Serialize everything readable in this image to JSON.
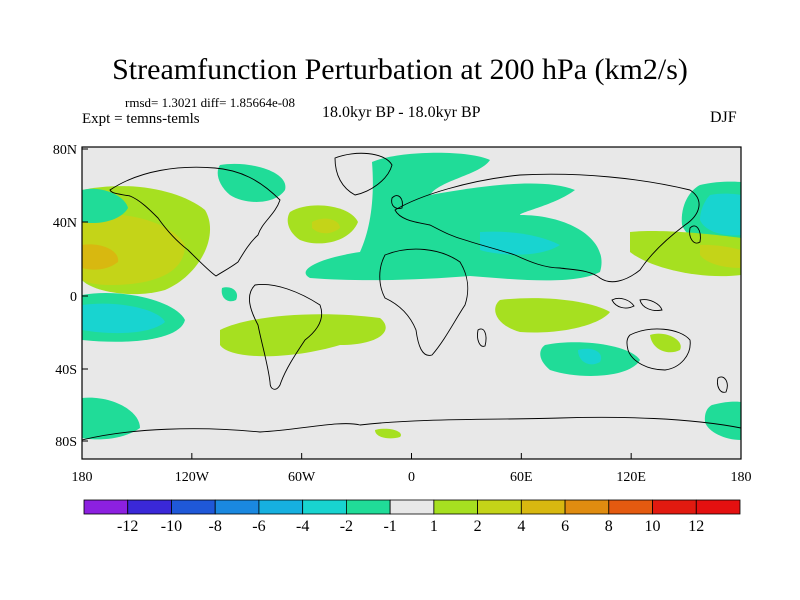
{
  "title": "Streamfunction Perturbation at 200 hPa (km2/s)",
  "stats": "rmsd= 1.3021 diff= 1.85664e-08",
  "expt": "Expt = temns-temls",
  "subtitle": "18.0kyr BP - 18.0kyr BP",
  "season": "DJF",
  "map": {
    "lat_ticks": [
      "80N",
      "40N",
      "0",
      "40S",
      "80S"
    ],
    "lon_ticks": [
      "180",
      "120W",
      "60W",
      "0",
      "60E",
      "120E",
      "180"
    ]
  },
  "colorbar": {
    "labels": [
      "-12",
      "-10",
      "-8",
      "-6",
      "-4",
      "-2",
      "-1",
      "1",
      "2",
      "4",
      "6",
      "8",
      "10",
      "12"
    ],
    "colors": [
      "#8c20e0",
      "#3a28d8",
      "#1f58d8",
      "#1a88e0",
      "#16b0e0",
      "#18d4d0",
      "#20dc98",
      "#e8e8e8",
      "#a6e020",
      "#c4d418",
      "#d8b810",
      "#e08c10",
      "#e45a10",
      "#e21a10",
      "#e41010"
    ]
  }
}
